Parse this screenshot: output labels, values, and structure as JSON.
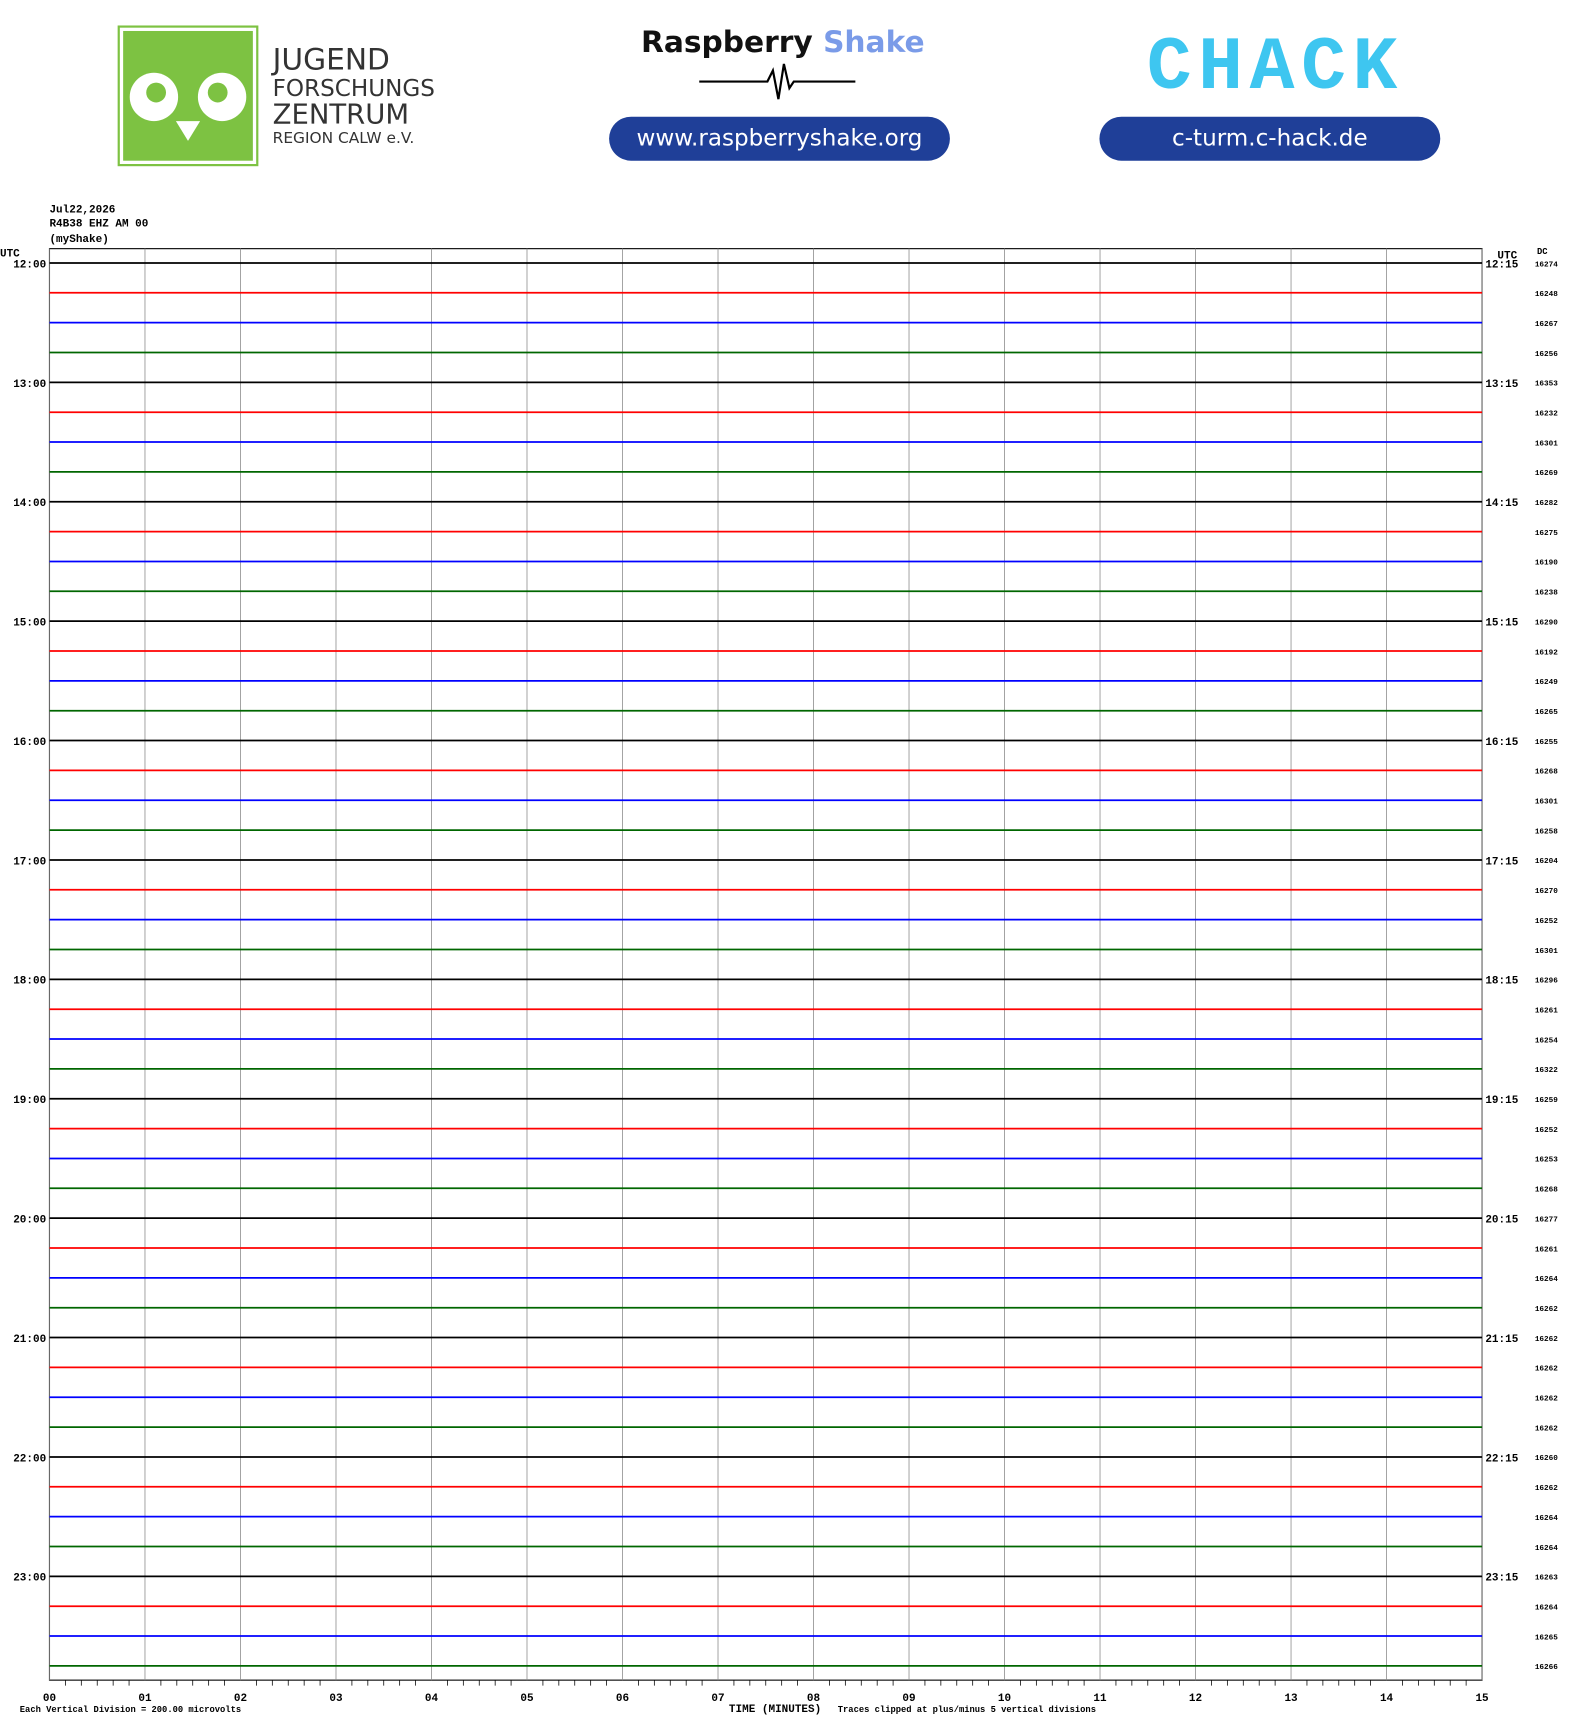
{
  "header": {
    "logo_lines": [
      "JUGEND",
      "FORSCHUNGS",
      "ZENTRUM",
      "REGION CALW e.V."
    ],
    "brand_first": "Raspberry",
    "brand_second": "Shake",
    "brand_url": "www.raspberryshake.org",
    "chack": "CHACK",
    "chack_url": "c-turm.c-hack.de"
  },
  "plot": {
    "date": "Jul22,2026",
    "station": "R4B38 EHZ AM 00",
    "source": "(myShake)",
    "left_axis_label": "UTC",
    "right_axis_label": "UTC",
    "dc_label": "DC",
    "left_times": [
      "12:00",
      "13:00",
      "14:00",
      "15:00",
      "16:00",
      "17:00",
      "18:00",
      "19:00",
      "20:00",
      "21:00",
      "22:00",
      "23:00"
    ],
    "right_times": [
      "12:15",
      "13:15",
      "14:15",
      "15:15",
      "16:15",
      "17:15",
      "18:15",
      "19:15",
      "20:15",
      "21:15",
      "22:15",
      "23:15"
    ],
    "dc_values": [
      16274,
      16248,
      16267,
      16256,
      16353,
      16232,
      16301,
      16269,
      16282,
      16275,
      16190,
      16238,
      16290,
      16192,
      16249,
      16265,
      16255,
      16268,
      16301,
      16258,
      16204,
      16270,
      16252,
      16301,
      16296,
      16261,
      16254,
      16322,
      16259,
      16252,
      16253,
      16268,
      16277,
      16261,
      16264,
      16262,
      16262,
      16262,
      16262,
      16262,
      16260,
      16262,
      16264,
      16264,
      16263,
      16264,
      16265,
      16266
    ],
    "trace_colors": [
      "#000000",
      "#ff0000",
      "#0000ff",
      "#006600"
    ],
    "x_ticks": [
      "00",
      "01",
      "02",
      "03",
      "04",
      "05",
      "06",
      "07",
      "08",
      "09",
      "10",
      "11",
      "12",
      "13",
      "14",
      "15"
    ],
    "x_label": "TIME (MINUTES)",
    "scale_note": "Each Vertical Division =  200.00 microvolts",
    "clip_note": "Traces clipped at plus/minus 5 vertical divisions"
  }
}
